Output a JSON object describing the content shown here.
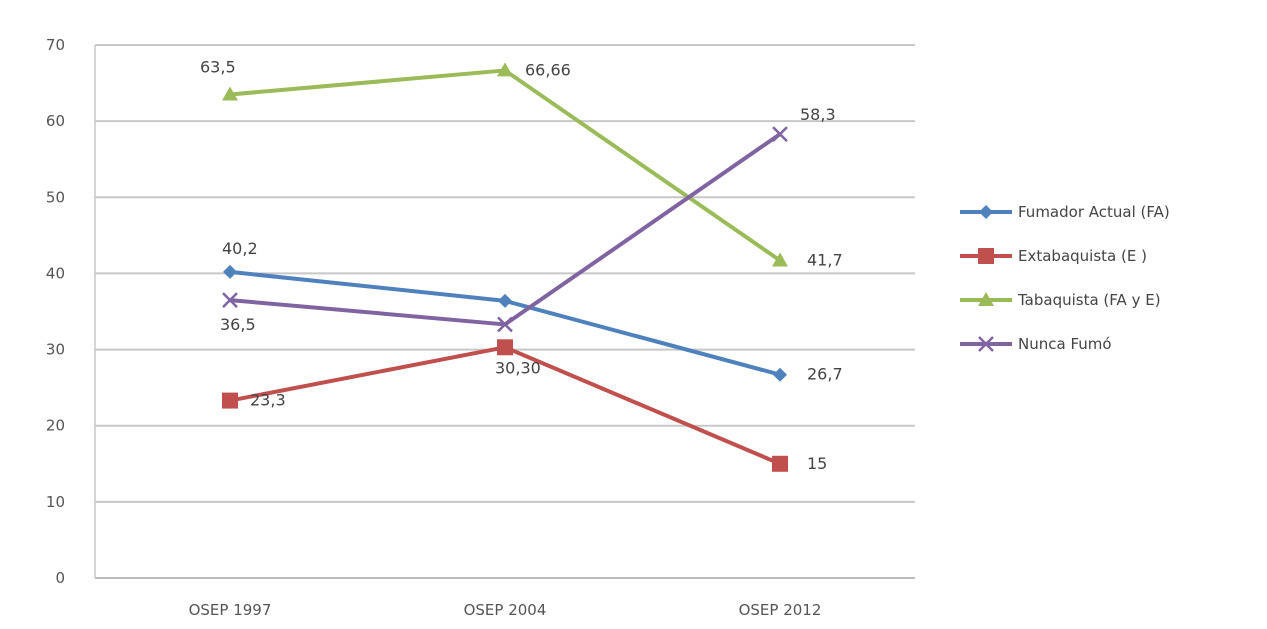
{
  "chart_data": {
    "type": "line",
    "title": "",
    "xlabel": "",
    "ylabel": "",
    "categories": [
      "OSEP 1997",
      "OSEP 2004",
      "OSEP 2012"
    ],
    "ylim": [
      0,
      70
    ],
    "yticks": [
      0,
      10,
      20,
      30,
      40,
      50,
      60,
      70
    ],
    "grid": true,
    "legend_position": "right",
    "series": [
      {
        "name": "Fumador Actual (FA)",
        "values": [
          40.2,
          36.4,
          26.7
        ],
        "labels": [
          "40,2",
          "",
          "26,7"
        ],
        "color": "#4f81bd",
        "marker": "diamond"
      },
      {
        "name": "Extabaquista (E )",
        "values": [
          23.3,
          30.3,
          15
        ],
        "labels": [
          "23,3",
          "30,30",
          "15"
        ],
        "color": "#c0504d",
        "marker": "square"
      },
      {
        "name": "Tabaquista (FA y E)",
        "values": [
          63.5,
          66.66,
          41.7
        ],
        "labels": [
          "63,5",
          "66,66",
          "41,7"
        ],
        "color": "#9bbb59",
        "marker": "triangle"
      },
      {
        "name": "Nunca Fumó",
        "values": [
          36.5,
          33.3,
          58.3
        ],
        "labels": [
          "36,5",
          "",
          "58,3"
        ],
        "color": "#8064a2",
        "marker": "x"
      }
    ]
  }
}
